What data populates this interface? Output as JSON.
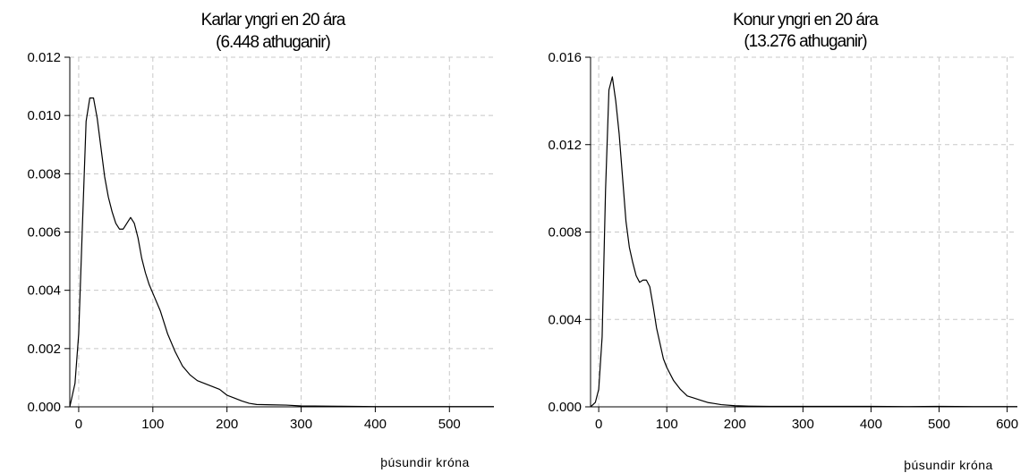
{
  "chart_data": [
    {
      "type": "line",
      "title": "Karlar yngri en 20 ára",
      "subtitle": "(6.448 athuganir)",
      "xlabel": "þúsundir króna",
      "ylabel": "",
      "xlim": [
        -12,
        560
      ],
      "ylim": [
        0,
        0.012
      ],
      "x_ticks": [
        0,
        100,
        200,
        300,
        400,
        500
      ],
      "y_ticks": [
        0.0,
        0.002,
        0.004,
        0.006,
        0.008,
        0.01,
        0.012
      ],
      "y_tick_labels": [
        "0.000",
        "0.002",
        "0.004",
        "0.006",
        "0.008",
        "0.010",
        "0.012"
      ],
      "grid": true,
      "series": [
        {
          "x": [
            -12,
            -5,
            0,
            5,
            10,
            15,
            20,
            25,
            30,
            35,
            40,
            45,
            50,
            55,
            60,
            65,
            70,
            75,
            80,
            85,
            90,
            95,
            100,
            110,
            120,
            130,
            140,
            150,
            160,
            170,
            180,
            190,
            200,
            210,
            220,
            230,
            240,
            260,
            280,
            300,
            350,
            400,
            450,
            500,
            560
          ],
          "values": [
            0.0,
            0.0008,
            0.0025,
            0.0062,
            0.0098,
            0.0106,
            0.0106,
            0.0099,
            0.0089,
            0.0079,
            0.0072,
            0.0067,
            0.0063,
            0.0061,
            0.0061,
            0.0063,
            0.0065,
            0.0063,
            0.0058,
            0.0051,
            0.0046,
            0.0042,
            0.0039,
            0.0033,
            0.0025,
            0.0019,
            0.0014,
            0.0011,
            0.0009,
            0.0008,
            0.0007,
            0.0006,
            0.0004,
            0.0003,
            0.0002,
            0.00012,
            8e-05,
            7e-05,
            6e-05,
            3e-05,
            2e-05,
            1e-05,
            1e-05,
            1e-05,
            1e-05
          ]
        }
      ]
    },
    {
      "type": "line",
      "title": "Konur yngri en 20 ára",
      "subtitle": "(13.276 athuganir)",
      "xlabel": "þúsundir króna",
      "ylabel": "",
      "xlim": [
        -12,
        615
      ],
      "ylim": [
        0,
        0.016
      ],
      "x_ticks": [
        0,
        100,
        200,
        300,
        400,
        500,
        600
      ],
      "y_ticks": [
        0.0,
        0.004,
        0.008,
        0.012,
        0.016
      ],
      "y_tick_labels": [
        "0.000",
        "0.004",
        "0.008",
        "0.012",
        "0.016"
      ],
      "grid": true,
      "series": [
        {
          "x": [
            -12,
            -5,
            0,
            5,
            10,
            15,
            20,
            25,
            30,
            35,
            40,
            45,
            50,
            55,
            60,
            65,
            70,
            75,
            80,
            85,
            90,
            95,
            100,
            110,
            120,
            130,
            140,
            150,
            160,
            170,
            180,
            200,
            220,
            250,
            300,
            350,
            400,
            450,
            500,
            550,
            615
          ],
          "values": [
            0.0,
            0.0002,
            0.0008,
            0.0032,
            0.0099,
            0.0145,
            0.0151,
            0.014,
            0.0125,
            0.0105,
            0.0085,
            0.0073,
            0.0066,
            0.006,
            0.0057,
            0.0058,
            0.0058,
            0.0055,
            0.0046,
            0.0036,
            0.0029,
            0.0022,
            0.0018,
            0.0012,
            0.0008,
            0.0005,
            0.0004,
            0.0003,
            0.0002,
            0.00015,
            0.0001,
            5e-05,
            3e-05,
            2e-05,
            2e-05,
            2e-05,
            2e-05,
            1e-05,
            2e-05,
            1e-05,
            1e-05
          ]
        }
      ]
    }
  ]
}
